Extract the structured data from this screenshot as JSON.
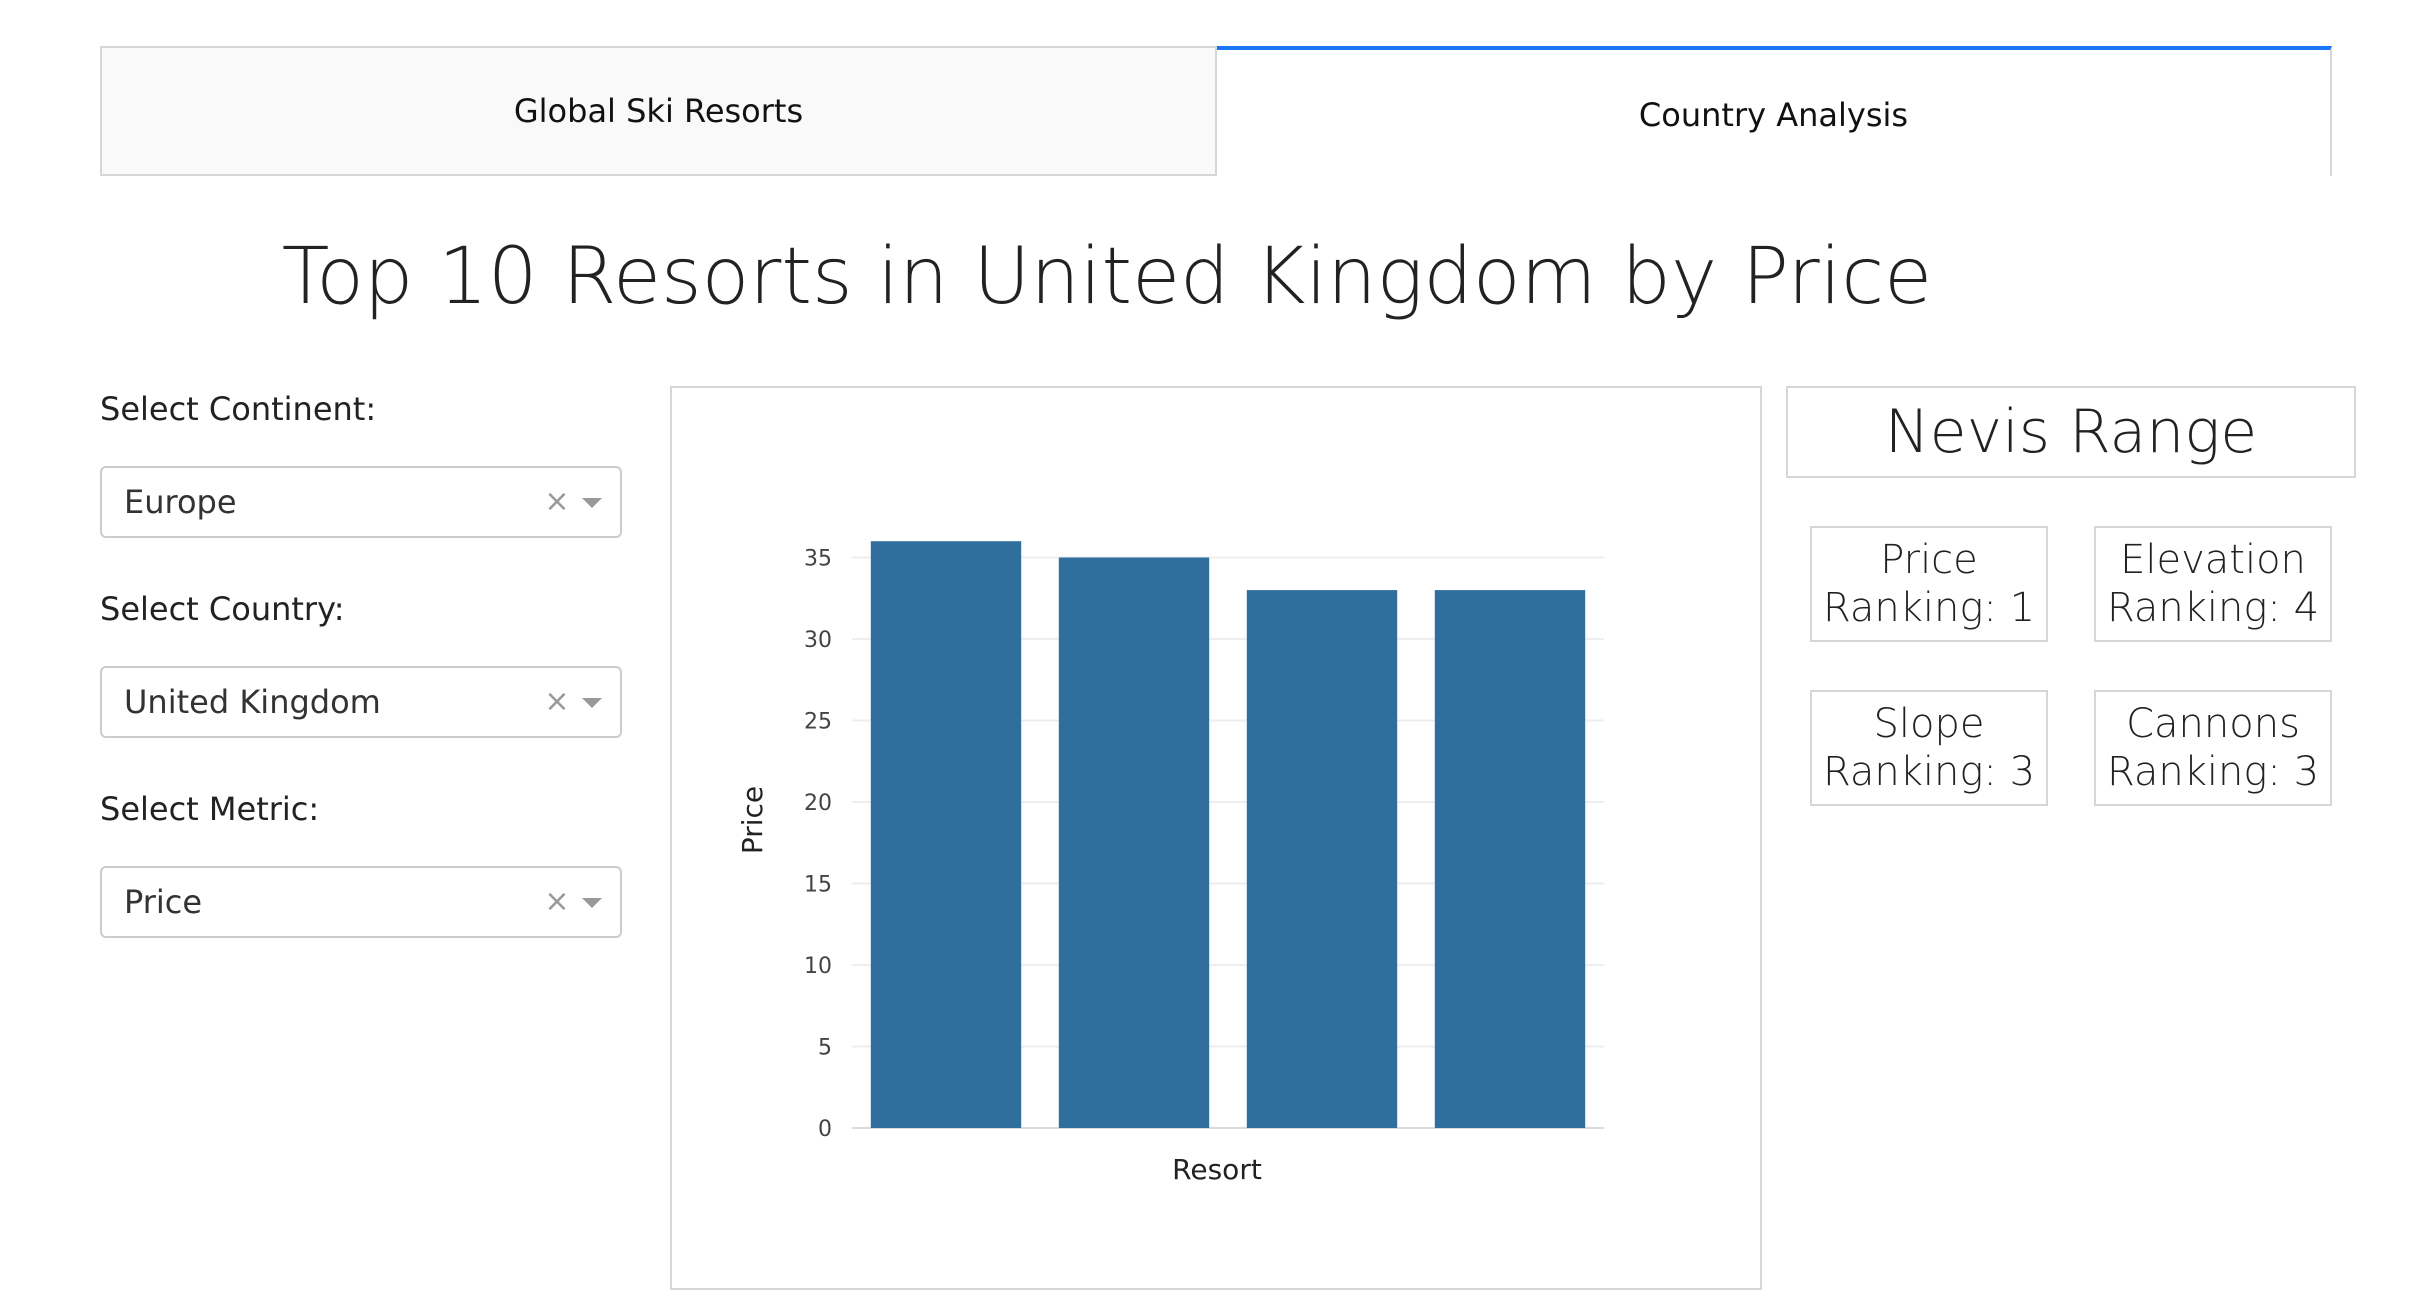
{
  "tabs": [
    {
      "label": "Global Ski Resorts",
      "selected": false
    },
    {
      "label": "Country Analysis",
      "selected": true
    }
  ],
  "title": "Top 10 Resorts in United Kingdom by Price",
  "controls": {
    "continent": {
      "label": "Select Continent:",
      "value": "Europe"
    },
    "country": {
      "label": "Select Country:",
      "value": "United Kingdom"
    },
    "metric": {
      "label": "Select Metric:",
      "value": "Price"
    },
    "clear_glyph": "×"
  },
  "chart_data": {
    "type": "bar",
    "xlabel": "Resort",
    "ylabel": "Price",
    "categories": [
      "",
      "",
      "",
      ""
    ],
    "values": [
      36,
      35,
      33,
      33
    ],
    "ylim": [
      0,
      37
    ],
    "yticks": [
      0,
      5,
      10,
      15,
      20,
      25,
      30,
      35
    ],
    "bar_color": "#2f6e9d",
    "grid": true,
    "legend": "none"
  },
  "resort": {
    "name": "Nevis Range",
    "rankings": [
      {
        "metric": "Price",
        "text": "Ranking: 1"
      },
      {
        "metric": "Elevation",
        "text": "Ranking: 4"
      },
      {
        "metric": "Slope",
        "text": "Ranking: 3"
      },
      {
        "metric": "Cannons",
        "text": "Ranking: 3"
      }
    ]
  },
  "colors": {
    "tab_accent": "#1975fa",
    "border": "#d6d6d6"
  }
}
